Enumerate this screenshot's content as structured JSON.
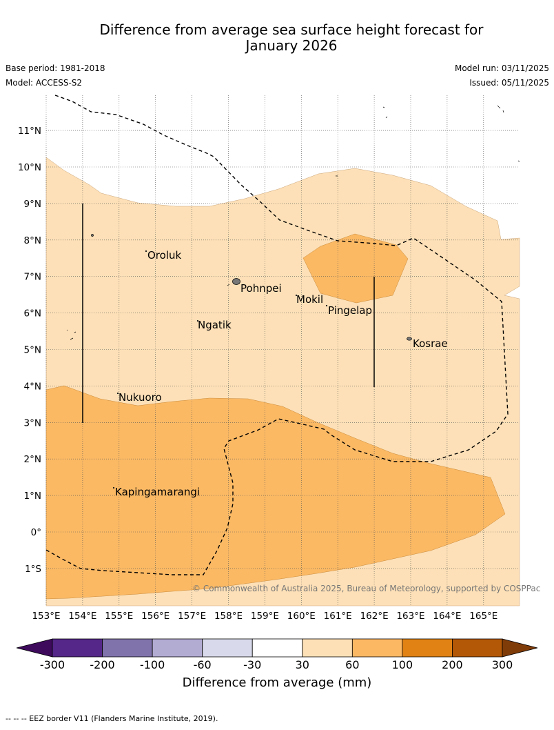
{
  "header": {
    "title_line1": "Difference from average sea surface height forecast for",
    "title_line2": "January 2026",
    "base_period": "Base period: 1981-2018",
    "model": "Model: ACCESS-S2",
    "model_run": "Model run: 03/11/2025",
    "issued": "Issued: 05/11/2025"
  },
  "map": {
    "lon_labels": [
      "153°E",
      "154°E",
      "155°E",
      "156°E",
      "157°E",
      "158°E",
      "159°E",
      "160°E",
      "161°E",
      "162°E",
      "163°E",
      "164°E",
      "165°E"
    ],
    "lat_labels": [
      "11°N",
      "10°N",
      "9°N",
      "8°N",
      "7°N",
      "6°N",
      "5°N",
      "4°N",
      "3°N",
      "2°N",
      "1°N",
      "0°",
      "1°S"
    ],
    "places": [
      "Oroluk",
      "Pohnpei",
      "Mokil",
      "Pingelap",
      "Ngatik",
      "Kosrae",
      "Nukuoro",
      "Kapingamarangi"
    ],
    "copyright": "© Commonwealth of Australia 2025, Bureau of Meteorology, supported by COSPPac",
    "colors": {
      "band_30_60": "#fde0b7",
      "band_60_100": "#fbb964",
      "eez_line": "#000000"
    }
  },
  "colorbar": {
    "ticks": [
      "-300",
      "-200",
      "-100",
      "-60",
      "-30",
      "30",
      "60",
      "100",
      "200",
      "300"
    ],
    "label": "Difference from average (mm)",
    "colors": [
      "#3d0a5c",
      "#542788",
      "#8073ac",
      "#b2abd2",
      "#d8daeb",
      "#ffffff",
      "#fee0b6",
      "#fdb863",
      "#e08214",
      "#b35806",
      "#7f3b08"
    ]
  },
  "footnote": "--  --  -- EEZ border V11 (Flanders Marine Institute, 2019)."
}
